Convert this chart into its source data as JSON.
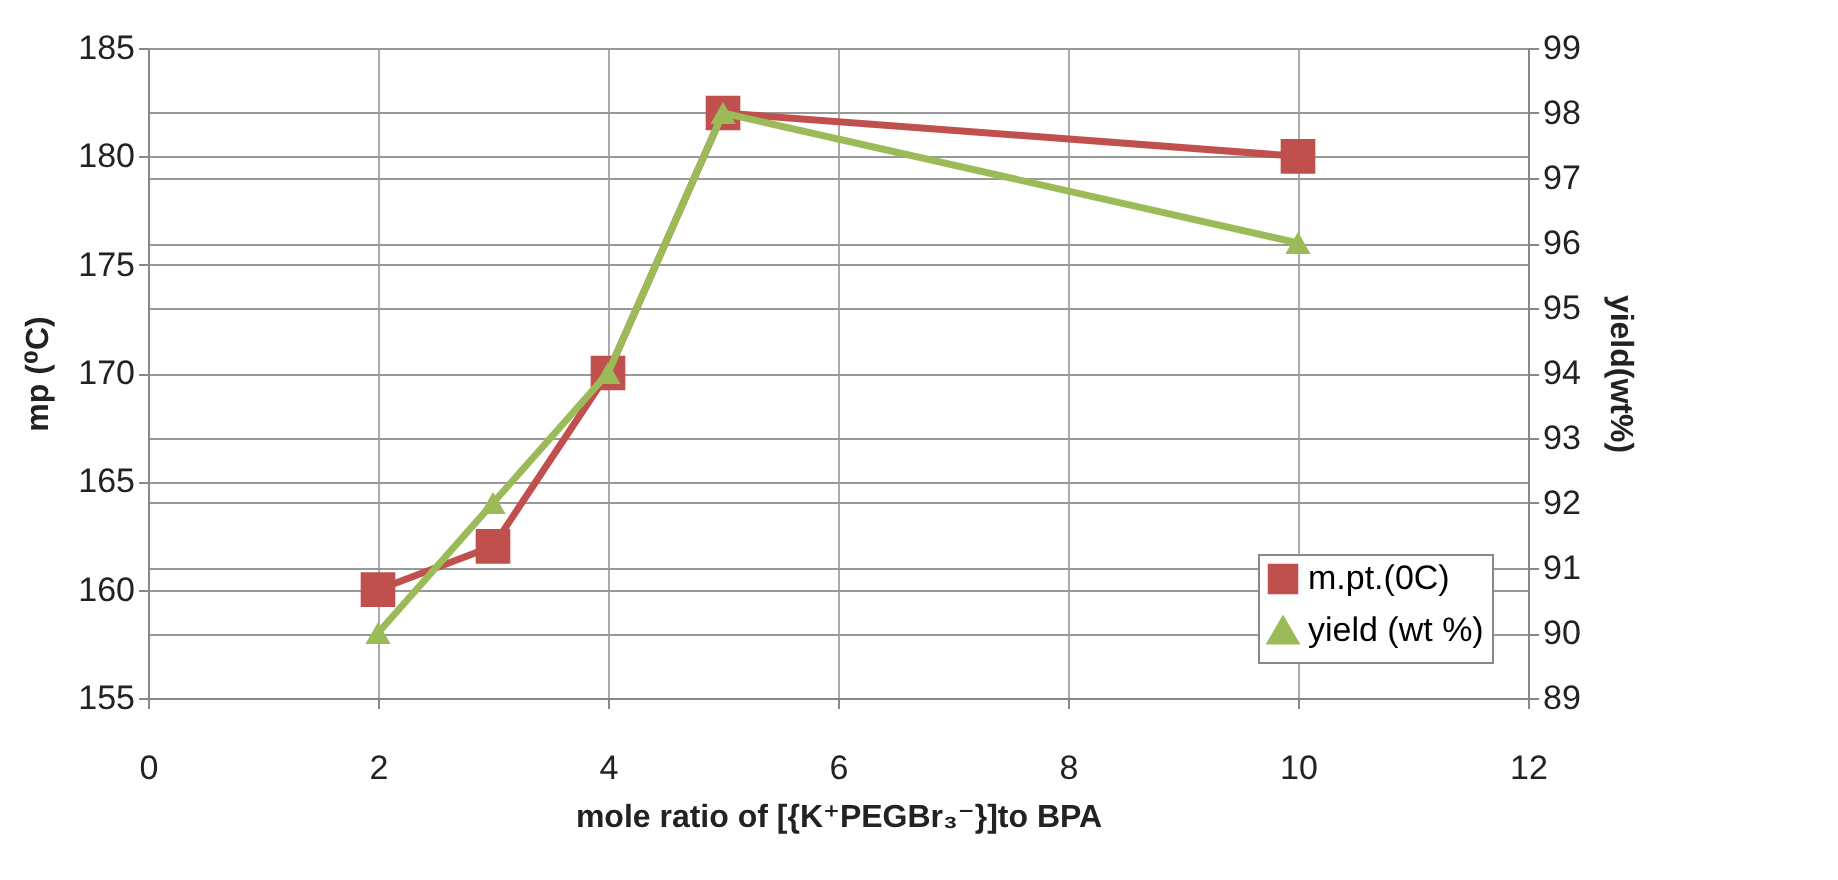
{
  "chart_data": {
    "type": "line",
    "xlabel": "mole ratio of [{K⁺PEGBr₃⁻}]to BPA",
    "ylabel": "mp (⁰C)",
    "y2label": "yield(wt%)",
    "x": [
      2,
      3,
      4,
      5,
      10
    ],
    "series": [
      {
        "name": "m.pt.(0C)",
        "color": "#c0504d",
        "marker": "square",
        "values": [
          160,
          162,
          170,
          182,
          180
        ]
      },
      {
        "name": "yield (wt %)",
        "color": "#9bbb59",
        "marker": "triangle",
        "axis": "y2",
        "values": [
          90,
          92,
          94,
          98,
          96
        ]
      }
    ],
    "xlim": [
      0,
      12
    ],
    "xticks": [
      0,
      2,
      4,
      6,
      8,
      10,
      12
    ],
    "ylim": [
      155,
      185
    ],
    "yticks": [
      155,
      160,
      165,
      170,
      175,
      180,
      185
    ],
    "y2lim": [
      89,
      99
    ],
    "y2ticks": [
      89,
      90,
      91,
      92,
      93,
      94,
      95,
      96,
      97,
      98,
      99
    ],
    "grid": true,
    "legend": "bottom right",
    "line_style": "solid"
  }
}
